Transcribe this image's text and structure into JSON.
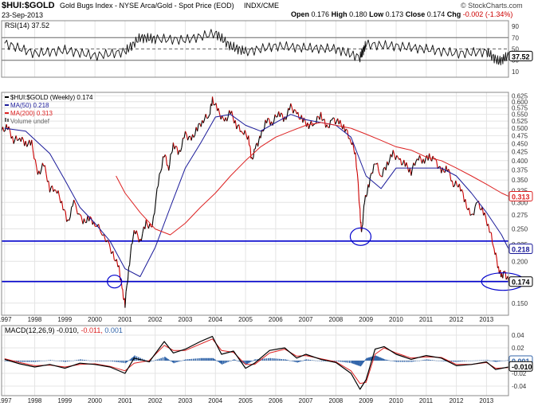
{
  "header": {
    "symbol": "$HUI:$GOLD",
    "description": "Gold Bugs Index - NYSE Arca/Gold - Spot Price (EOD)",
    "exchange": "INDX/CME",
    "date": "23-Sep-2013",
    "copyright": "© StockCharts.com",
    "ohlc": [
      {
        "label": "Open",
        "value": "0.176"
      },
      {
        "label": "High",
        "value": "0.180"
      },
      {
        "label": "Low",
        "value": "0.173"
      },
      {
        "label": "Close",
        "value": "0.174"
      },
      {
        "label": "Chg",
        "value": "-0.002 (-1.34%)",
        "color": "#cc0000"
      }
    ]
  },
  "colors": {
    "price": "#000000",
    "price_down": "#cc0000",
    "ma50": "#1a1a99",
    "ma200": "#dd2222",
    "support": "#0000cc",
    "macd_hist": "#3366aa",
    "grid": "#e4e4e4"
  },
  "icons": {
    "volume_legend": "volume-bars-icon",
    "highlight": "blue-ellipse-marker"
  },
  "chart_data": [
    {
      "type": "line",
      "panel": "RSI",
      "title": "RSI(14) 37.52",
      "ylim": [
        0,
        100
      ],
      "yticks": [
        10,
        30,
        50,
        70,
        90
      ],
      "reference_lines": [
        30,
        50,
        70
      ],
      "current_label": "37.52",
      "x": [
        1997,
        1998,
        1999,
        2000,
        2001,
        2001.5,
        2002,
        2003,
        2004,
        2004.5,
        2005,
        2006,
        2007,
        2008,
        2008.8,
        2009,
        2010,
        2011,
        2012,
        2013,
        2013.4,
        2013.73
      ],
      "values": [
        60,
        42,
        48,
        38,
        45,
        70,
        68,
        66,
        78,
        55,
        45,
        55,
        52,
        50,
        35,
        58,
        55,
        50,
        42,
        45,
        28,
        37.52
      ]
    },
    {
      "type": "line",
      "panel": "price",
      "title": "$HUI:$GOLD (Weekly) 0.174",
      "legend": [
        {
          "name": "$HUI:$GOLD (Weekly) 0.174",
          "icon": "price-line-icon"
        },
        {
          "name": "MA(50) 0.218",
          "icon": "ma50-line-icon"
        },
        {
          "name": "MA(200) 0.313",
          "icon": "ma200-line-icon"
        },
        {
          "name": "Volume undef",
          "icon": "volume-bars-icon"
        }
      ],
      "y_scale": "log",
      "ylim": [
        0.138,
        0.64
      ],
      "yticks": [
        0.15,
        0.175,
        0.2,
        0.225,
        0.25,
        0.275,
        0.3,
        0.325,
        0.35,
        0.375,
        0.4,
        0.425,
        0.45,
        0.475,
        0.5,
        0.525,
        0.55,
        0.575,
        0.6,
        0.625
      ],
      "xlim": [
        1996.9,
        2013.73
      ],
      "xticks": [
        "1997",
        "1998",
        "1999",
        "2000",
        "2001",
        "2002",
        "2003",
        "2004",
        "2005",
        "2006",
        "2007",
        "2008",
        "2009",
        "2010",
        "2011",
        "2012",
        "2013"
      ],
      "series": [
        {
          "name": "$HUI:$GOLD",
          "x": [
            1996.9,
            1997.1,
            1997.3,
            1997.5,
            1997.7,
            1997.9,
            1998.1,
            1998.3,
            1998.5,
            1998.7,
            1998.9,
            1999.1,
            1999.3,
            1999.6,
            1999.8,
            2000.0,
            2000.3,
            2000.6,
            2000.8,
            2000.9,
            2001.0,
            2001.15,
            2001.3,
            2001.5,
            2001.7,
            2001.9,
            2002.1,
            2002.3,
            2002.45,
            2002.6,
            2002.8,
            2003.0,
            2003.2,
            2003.4,
            2003.6,
            2003.8,
            2003.9,
            2004.1,
            2004.3,
            2004.5,
            2004.7,
            2004.9,
            2005.1,
            2005.2,
            2005.35,
            2005.5,
            2005.7,
            2005.9,
            2006.1,
            2006.3,
            2006.5,
            2006.7,
            2006.9,
            2007.1,
            2007.3,
            2007.5,
            2007.7,
            2007.9,
            2008.1,
            2008.3,
            2008.5,
            2008.65,
            2008.8,
            2008.85,
            2008.95,
            2009.1,
            2009.3,
            2009.5,
            2009.7,
            2009.9,
            2010.1,
            2010.3,
            2010.5,
            2010.7,
            2010.9,
            2011.1,
            2011.3,
            2011.5,
            2011.7,
            2011.9,
            2012.1,
            2012.3,
            2012.5,
            2012.7,
            2012.9,
            2013.1,
            2013.25,
            2013.4,
            2013.5,
            2013.6,
            2013.73
          ],
          "values": [
            0.49,
            0.505,
            0.46,
            0.47,
            0.45,
            0.45,
            0.36,
            0.39,
            0.33,
            0.33,
            0.3,
            0.26,
            0.3,
            0.26,
            0.27,
            0.26,
            0.24,
            0.21,
            0.19,
            0.165,
            0.148,
            0.2,
            0.25,
            0.23,
            0.26,
            0.25,
            0.34,
            0.42,
            0.38,
            0.45,
            0.42,
            0.48,
            0.46,
            0.5,
            0.53,
            0.55,
            0.61,
            0.56,
            0.52,
            0.56,
            0.51,
            0.49,
            0.47,
            0.4,
            0.44,
            0.47,
            0.53,
            0.52,
            0.56,
            0.53,
            0.58,
            0.55,
            0.53,
            0.51,
            0.52,
            0.55,
            0.5,
            0.53,
            0.52,
            0.5,
            0.46,
            0.42,
            0.28,
            0.24,
            0.3,
            0.34,
            0.4,
            0.36,
            0.39,
            0.42,
            0.4,
            0.39,
            0.37,
            0.41,
            0.4,
            0.41,
            0.4,
            0.37,
            0.38,
            0.34,
            0.34,
            0.3,
            0.27,
            0.3,
            0.28,
            0.25,
            0.22,
            0.19,
            0.18,
            0.185,
            0.174
          ]
        },
        {
          "name": "MA(50)",
          "x": [
            1997.0,
            1997.7,
            1998.5,
            1999.0,
            1999.5,
            2000.0,
            2000.5,
            2001.0,
            2001.5,
            2002.0,
            2002.5,
            2003.0,
            2003.5,
            2004.0,
            2004.5,
            2005.0,
            2005.5,
            2006.0,
            2006.5,
            2007.0,
            2007.5,
            2008.0,
            2008.5,
            2009.0,
            2009.5,
            2010.0,
            2010.5,
            2011.0,
            2011.5,
            2012.0,
            2012.5,
            2013.0,
            2013.5,
            2013.73
          ],
          "values": [
            0.5,
            0.49,
            0.42,
            0.35,
            0.29,
            0.26,
            0.23,
            0.19,
            0.18,
            0.22,
            0.29,
            0.38,
            0.45,
            0.54,
            0.55,
            0.51,
            0.49,
            0.52,
            0.55,
            0.53,
            0.52,
            0.51,
            0.47,
            0.36,
            0.33,
            0.38,
            0.38,
            0.38,
            0.38,
            0.36,
            0.32,
            0.28,
            0.24,
            0.218
          ]
        },
        {
          "name": "MA(200)",
          "x": [
            2000.7,
            2001.0,
            2001.5,
            2002.0,
            2002.5,
            2003.0,
            2003.5,
            2004.0,
            2004.5,
            2005.0,
            2005.5,
            2006.0,
            2006.5,
            2007.0,
            2007.5,
            2008.0,
            2008.5,
            2009.0,
            2009.5,
            2010.0,
            2010.5,
            2011.0,
            2011.5,
            2012.0,
            2012.5,
            2013.0,
            2013.5,
            2013.73
          ],
          "values": [
            0.36,
            0.32,
            0.28,
            0.25,
            0.24,
            0.26,
            0.29,
            0.32,
            0.36,
            0.4,
            0.44,
            0.47,
            0.49,
            0.51,
            0.52,
            0.51,
            0.5,
            0.48,
            0.46,
            0.44,
            0.43,
            0.41,
            0.4,
            0.38,
            0.36,
            0.34,
            0.32,
            0.313
          ]
        }
      ],
      "horizontal_lines": [
        0.23,
        0.174
      ],
      "markers": [
        {
          "x": 2000.65,
          "y": 0.174
        },
        {
          "x": 2008.82,
          "y": 0.237
        },
        {
          "x": 2013.55,
          "y": 0.174
        }
      ],
      "current_labels": [
        {
          "name": "MA(200)",
          "value": "0.313"
        },
        {
          "name": "MA(50)",
          "value": "0.218"
        },
        {
          "name": "$HUI:$GOLD",
          "value": "0.174"
        }
      ]
    },
    {
      "type": "line",
      "panel": "MACD",
      "title": "MACD(12,26,9) -0.010, -0.011, 0.001",
      "title_parts": {
        "name": "MACD(12,26,9)",
        "macd": "-0.010",
        "signal": "-0.011",
        "histogram": "0.001"
      },
      "ylim": [
        -0.055,
        0.055
      ],
      "yticks": [
        -0.04,
        -0.02,
        0.0,
        0.02,
        0.04
      ],
      "series": [
        {
          "name": "MACD",
          "x": [
            1997,
            1997.5,
            1998,
            1998.5,
            1999,
            1999.5,
            2000,
            2000.5,
            2001,
            2001.3,
            2001.8,
            2002.3,
            2002.6,
            2003,
            2003.5,
            2003.9,
            2004.2,
            2004.6,
            2005,
            2005.3,
            2005.8,
            2006.3,
            2006.7,
            2007,
            2007.5,
            2008,
            2008.5,
            2008.8,
            2009.0,
            2009.3,
            2009.6,
            2010,
            2010.5,
            2011,
            2011.5,
            2012,
            2012.5,
            2013,
            2013.3,
            2013.73
          ],
          "values": [
            0.002,
            -0.005,
            -0.01,
            -0.006,
            -0.012,
            -0.004,
            -0.006,
            -0.01,
            -0.02,
            0.004,
            -0.002,
            0.03,
            0.012,
            0.018,
            0.03,
            0.038,
            0.01,
            0.015,
            -0.012,
            -0.004,
            0.016,
            0.02,
            0.004,
            0.01,
            0.002,
            -0.003,
            -0.02,
            -0.045,
            -0.03,
            0.018,
            0.022,
            0.01,
            0.002,
            0.008,
            0.004,
            -0.008,
            -0.006,
            -0.002,
            -0.014,
            -0.01
          ]
        },
        {
          "name": "Signal",
          "x": [
            1997,
            1997.5,
            1998,
            1998.5,
            1999,
            1999.5,
            2000,
            2000.5,
            2001,
            2001.3,
            2001.8,
            2002.3,
            2002.6,
            2003,
            2003.5,
            2003.9,
            2004.2,
            2004.6,
            2005,
            2005.3,
            2005.8,
            2006.3,
            2006.7,
            2007,
            2007.5,
            2008,
            2008.5,
            2008.8,
            2009.0,
            2009.3,
            2009.6,
            2010,
            2010.5,
            2011,
            2011.5,
            2012,
            2012.5,
            2013,
            2013.3,
            2013.73
          ],
          "values": [
            0.003,
            -0.003,
            -0.008,
            -0.007,
            -0.01,
            -0.006,
            -0.005,
            -0.009,
            -0.016,
            -0.004,
            0.0,
            0.024,
            0.016,
            0.016,
            0.026,
            0.034,
            0.016,
            0.013,
            -0.006,
            -0.006,
            0.012,
            0.018,
            0.007,
            0.008,
            0.003,
            -0.002,
            -0.016,
            -0.036,
            -0.034,
            0.01,
            0.02,
            0.012,
            0.004,
            0.006,
            0.005,
            -0.006,
            -0.006,
            -0.003,
            -0.012,
            -0.011
          ]
        }
      ],
      "histogram": {
        "name": "Histogram",
        "x": [
          1997,
          1997.5,
          1998,
          1998.5,
          1999,
          1999.5,
          2000,
          2000.5,
          2001,
          2001.3,
          2001.8,
          2002.3,
          2002.6,
          2003,
          2003.5,
          2003.9,
          2004.2,
          2004.6,
          2005,
          2005.3,
          2005.8,
          2006.3,
          2006.7,
          2007,
          2007.5,
          2008,
          2008.5,
          2008.8,
          2009.0,
          2009.3,
          2009.6,
          2010,
          2010.5,
          2011,
          2011.5,
          2012,
          2012.5,
          2013,
          2013.3,
          2013.73
        ],
        "values": [
          -0.001,
          -0.002,
          -0.002,
          0.001,
          -0.002,
          0.002,
          -0.001,
          -0.001,
          -0.004,
          0.008,
          -0.002,
          0.006,
          -0.004,
          0.002,
          0.004,
          0.004,
          -0.006,
          0.002,
          -0.006,
          0.002,
          0.004,
          0.002,
          -0.003,
          0.002,
          -0.001,
          -0.001,
          -0.004,
          -0.009,
          0.004,
          0.008,
          0.002,
          -0.002,
          -0.002,
          0.002,
          -0.001,
          -0.002,
          0.0,
          0.001,
          -0.002,
          0.001
        ]
      },
      "current_labels": [
        {
          "name": "Histogram",
          "value": "0.001"
        },
        {
          "name": "MACD",
          "value": "-0.010"
        }
      ]
    }
  ]
}
